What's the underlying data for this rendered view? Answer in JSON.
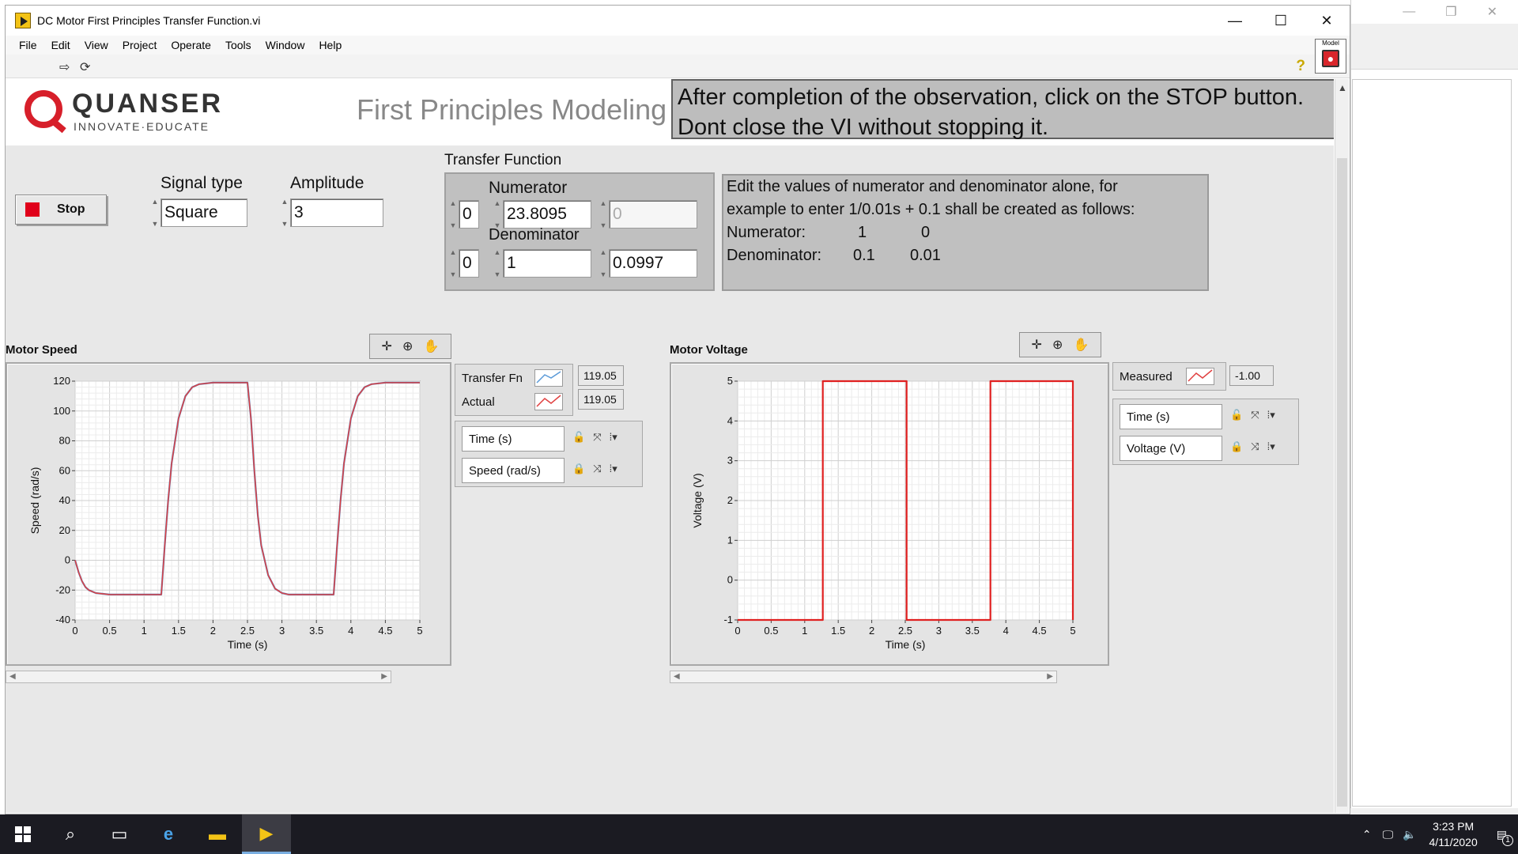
{
  "window": {
    "title": "DC Motor First Principles Transfer Function.vi",
    "controls": [
      "—",
      "☐",
      "✕"
    ]
  },
  "menu": [
    "File",
    "Edit",
    "View",
    "Project",
    "Operate",
    "Tools",
    "Window",
    "Help"
  ],
  "toolbar": {
    "model_label": "Model"
  },
  "header": {
    "logo_word": "QUANSER",
    "logo_sub": "INNOVATE·EDUCATE",
    "title": "First Principles Modeling",
    "instruction_line1": "After completion of the observation, click on the STOP button.",
    "instruction_line2": "Dont close the VI without stopping it."
  },
  "controls": {
    "stop_label": "Stop",
    "signal_type_label": "Signal type",
    "signal_type_value": "Square",
    "amplitude_label": "Amplitude",
    "amplitude_value": "3"
  },
  "transfer_function": {
    "label": "Transfer Function",
    "numerator_label": "Numerator",
    "denominator_label": "Denominator",
    "num_index": "0",
    "num_values": [
      "23.8095",
      "0"
    ],
    "den_index": "0",
    "den_values": [
      "1",
      "0.0997"
    ]
  },
  "note": {
    "line1": "Edit the values of numerator and denominator alone, for",
    "line2": "example to enter 1/0.01s + 0.1 shall be created as follows:",
    "numerator_label": "Numerator:",
    "numerator_vals": [
      "1",
      "0"
    ],
    "denominator_label": "Denominator:",
    "denominator_vals": [
      "0.1",
      "0.01"
    ]
  },
  "speed_graph": {
    "title": "Motor Speed",
    "legend": [
      {
        "name": "Transfer Fn",
        "value": "119.05"
      },
      {
        "name": "Actual",
        "value": "119.05"
      }
    ],
    "x_scale_name": "Time (s)",
    "y_scale_name": "Speed (rad/s)"
  },
  "voltage_graph": {
    "title": "Motor Voltage",
    "legend": [
      {
        "name": "Measured",
        "value": "-1.00"
      }
    ],
    "x_scale_name": "Time (s)",
    "y_scale_name": "Voltage (V)"
  },
  "chart_data": [
    {
      "type": "line",
      "title": "Motor Speed",
      "xlabel": "Time (s)",
      "ylabel": "Speed (rad/s)",
      "xlim": [
        0,
        5
      ],
      "ylim": [
        -40,
        120
      ],
      "xticks": [
        "0",
        "0.5",
        "1",
        "1.5",
        "2",
        "2.5",
        "3",
        "3.5",
        "4",
        "4.5",
        "5"
      ],
      "yticks": [
        "-40",
        "-20",
        "0",
        "20",
        "40",
        "60",
        "80",
        "100",
        "120"
      ],
      "grid": true,
      "series": [
        {
          "name": "Transfer Fn",
          "color": "#5a7ab5",
          "x": [
            0,
            0.05,
            0.1,
            0.15,
            0.2,
            0.3,
            0.5,
            1.0,
            1.25,
            1.3,
            1.35,
            1.4,
            1.5,
            1.6,
            1.7,
            1.8,
            2.0,
            2.5,
            2.55,
            2.6,
            2.65,
            2.7,
            2.8,
            2.9,
            3.0,
            3.1,
            3.3,
            3.75,
            3.8,
            3.85,
            3.9,
            4.0,
            4.1,
            4.2,
            4.3,
            4.5,
            5.0
          ],
          "y": [
            0,
            -8,
            -14,
            -18,
            -20,
            -22,
            -23,
            -23,
            -23,
            10,
            40,
            65,
            95,
            110,
            116,
            118,
            119,
            119,
            95,
            60,
            30,
            10,
            -10,
            -19,
            -22,
            -23,
            -23,
            -23,
            10,
            40,
            65,
            95,
            110,
            116,
            118,
            119,
            119
          ]
        },
        {
          "name": "Actual",
          "color": "#e04040",
          "x": [
            0,
            0.05,
            0.1,
            0.15,
            0.2,
            0.3,
            0.5,
            1.0,
            1.25,
            1.3,
            1.35,
            1.4,
            1.5,
            1.6,
            1.7,
            1.8,
            2.0,
            2.5,
            2.55,
            2.6,
            2.65,
            2.7,
            2.8,
            2.9,
            3.0,
            3.1,
            3.3,
            3.75,
            3.8,
            3.85,
            3.9,
            4.0,
            4.1,
            4.2,
            4.3,
            4.5,
            5.0
          ],
          "y": [
            0,
            -8,
            -14,
            -18,
            -20,
            -22,
            -23,
            -23,
            -23,
            10,
            40,
            65,
            95,
            110,
            116,
            118,
            119,
            119,
            95,
            60,
            30,
            10,
            -10,
            -19,
            -22,
            -23,
            -23,
            -23,
            10,
            40,
            65,
            95,
            110,
            116,
            118,
            119,
            119
          ]
        }
      ]
    },
    {
      "type": "line",
      "title": "Motor Voltage",
      "xlabel": "Time (s)",
      "ylabel": "Voltage (V)",
      "xlim": [
        0,
        5
      ],
      "ylim": [
        -1,
        5
      ],
      "xticks": [
        "0",
        "0.5",
        "1",
        "1.5",
        "2",
        "2.5",
        "3",
        "3.5",
        "4",
        "4.5",
        "5"
      ],
      "yticks": [
        "-1",
        "0",
        "1",
        "2",
        "3",
        "4",
        "5"
      ],
      "grid": true,
      "series": [
        {
          "name": "Measured",
          "color": "#e02020",
          "x": [
            0,
            1.27,
            1.27,
            2.52,
            2.52,
            3.77,
            3.77,
            5.0,
            5.0
          ],
          "y": [
            -1,
            -1,
            5,
            5,
            -1,
            -1,
            5,
            5,
            -1
          ]
        }
      ]
    }
  ],
  "taskbar": {
    "time": "3:23 PM",
    "date": "4/11/2020",
    "notif_count": "1"
  }
}
